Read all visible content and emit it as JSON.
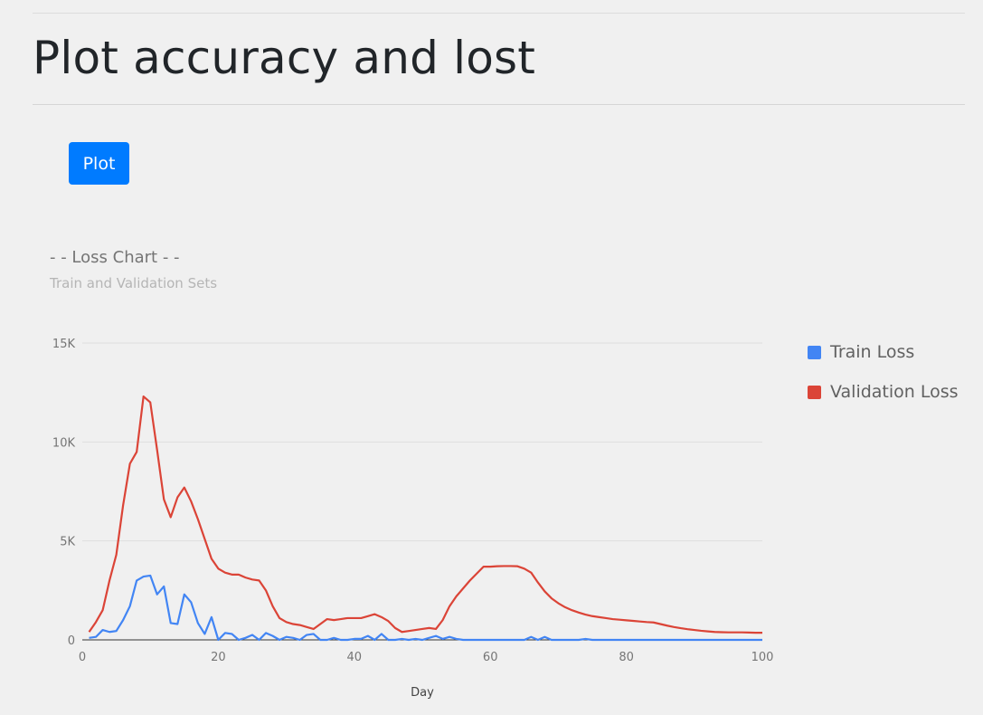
{
  "page": {
    "title": "Plot accuracy and lost",
    "plot_button_label": "Plot"
  },
  "chart_data": {
    "type": "line",
    "title": "- - Loss Chart - -",
    "subtitle": "Train and Validation Sets",
    "xlabel": "Day",
    "ylabel": "",
    "xlim": [
      0,
      100
    ],
    "ylim": [
      0,
      15000
    ],
    "xticks": [
      0,
      20,
      40,
      60,
      80,
      100
    ],
    "xtick_labels": [
      "0",
      "20",
      "40",
      "60",
      "80",
      "100"
    ],
    "yticks": [
      0,
      5000,
      10000,
      15000
    ],
    "ytick_labels": [
      "0",
      "5K",
      "10K",
      "15K"
    ],
    "grid": true,
    "legend_position": "right",
    "x": [
      1,
      2,
      3,
      4,
      5,
      6,
      7,
      8,
      9,
      10,
      11,
      12,
      13,
      14,
      15,
      16,
      17,
      18,
      19,
      20,
      21,
      22,
      23,
      24,
      25,
      26,
      27,
      28,
      29,
      30,
      31,
      32,
      33,
      34,
      35,
      36,
      37,
      38,
      39,
      40,
      41,
      42,
      43,
      44,
      45,
      46,
      47,
      48,
      49,
      50,
      51,
      52,
      53,
      54,
      55,
      56,
      57,
      58,
      59,
      60,
      61,
      62,
      63,
      64,
      65,
      66,
      67,
      68,
      69,
      70,
      71,
      72,
      73,
      74,
      75,
      76,
      77,
      78,
      79,
      80,
      81,
      82,
      83,
      84,
      85,
      86,
      87,
      88,
      89,
      90,
      91,
      92,
      93,
      94,
      95,
      96,
      97,
      98,
      99,
      100
    ],
    "series": [
      {
        "name": "Train Loss",
        "color": "#4285f4",
        "values": [
          100,
          150,
          500,
          400,
          450,
          1000,
          1700,
          3000,
          3200,
          3250,
          2300,
          2700,
          850,
          800,
          2300,
          1900,
          850,
          300,
          1150,
          0,
          350,
          300,
          0,
          100,
          250,
          0,
          350,
          200,
          0,
          150,
          100,
          0,
          250,
          300,
          0,
          0,
          100,
          0,
          0,
          50,
          50,
          200,
          0,
          300,
          0,
          0,
          50,
          0,
          50,
          0,
          100,
          200,
          50,
          150,
          50,
          0,
          0,
          0,
          0,
          0,
          0,
          0,
          0,
          0,
          0,
          150,
          0,
          150,
          0,
          0,
          0,
          0,
          0,
          50,
          0,
          0,
          0,
          0,
          0,
          0,
          0,
          0,
          0,
          0,
          0,
          0,
          0,
          0,
          0,
          0,
          0,
          0,
          0,
          0,
          0,
          0,
          0,
          0,
          0,
          0
        ]
      },
      {
        "name": "Validation Loss",
        "color": "#db4437",
        "values": [
          400,
          900,
          1500,
          3000,
          4300,
          6800,
          8900,
          9500,
          12300,
          12000,
          9600,
          7100,
          6200,
          7200,
          7700,
          7000,
          6100,
          5100,
          4100,
          3600,
          3400,
          3300,
          3300,
          3150,
          3050,
          3000,
          2500,
          1700,
          1100,
          900,
          800,
          750,
          650,
          550,
          800,
          1050,
          1000,
          1050,
          1100,
          1100,
          1100,
          1200,
          1300,
          1150,
          950,
          600,
          400,
          450,
          500,
          550,
          600,
          550,
          1000,
          1700,
          2200,
          2600,
          3000,
          3350,
          3700,
          3700,
          3720,
          3730,
          3730,
          3720,
          3600,
          3400,
          2900,
          2450,
          2100,
          1850,
          1650,
          1500,
          1380,
          1280,
          1200,
          1150,
          1100,
          1050,
          1020,
          990,
          960,
          930,
          900,
          880,
          800,
          720,
          650,
          590,
          540,
          500,
          460,
          430,
          400,
          390,
          380,
          380,
          380,
          370,
          360,
          360
        ]
      }
    ]
  }
}
